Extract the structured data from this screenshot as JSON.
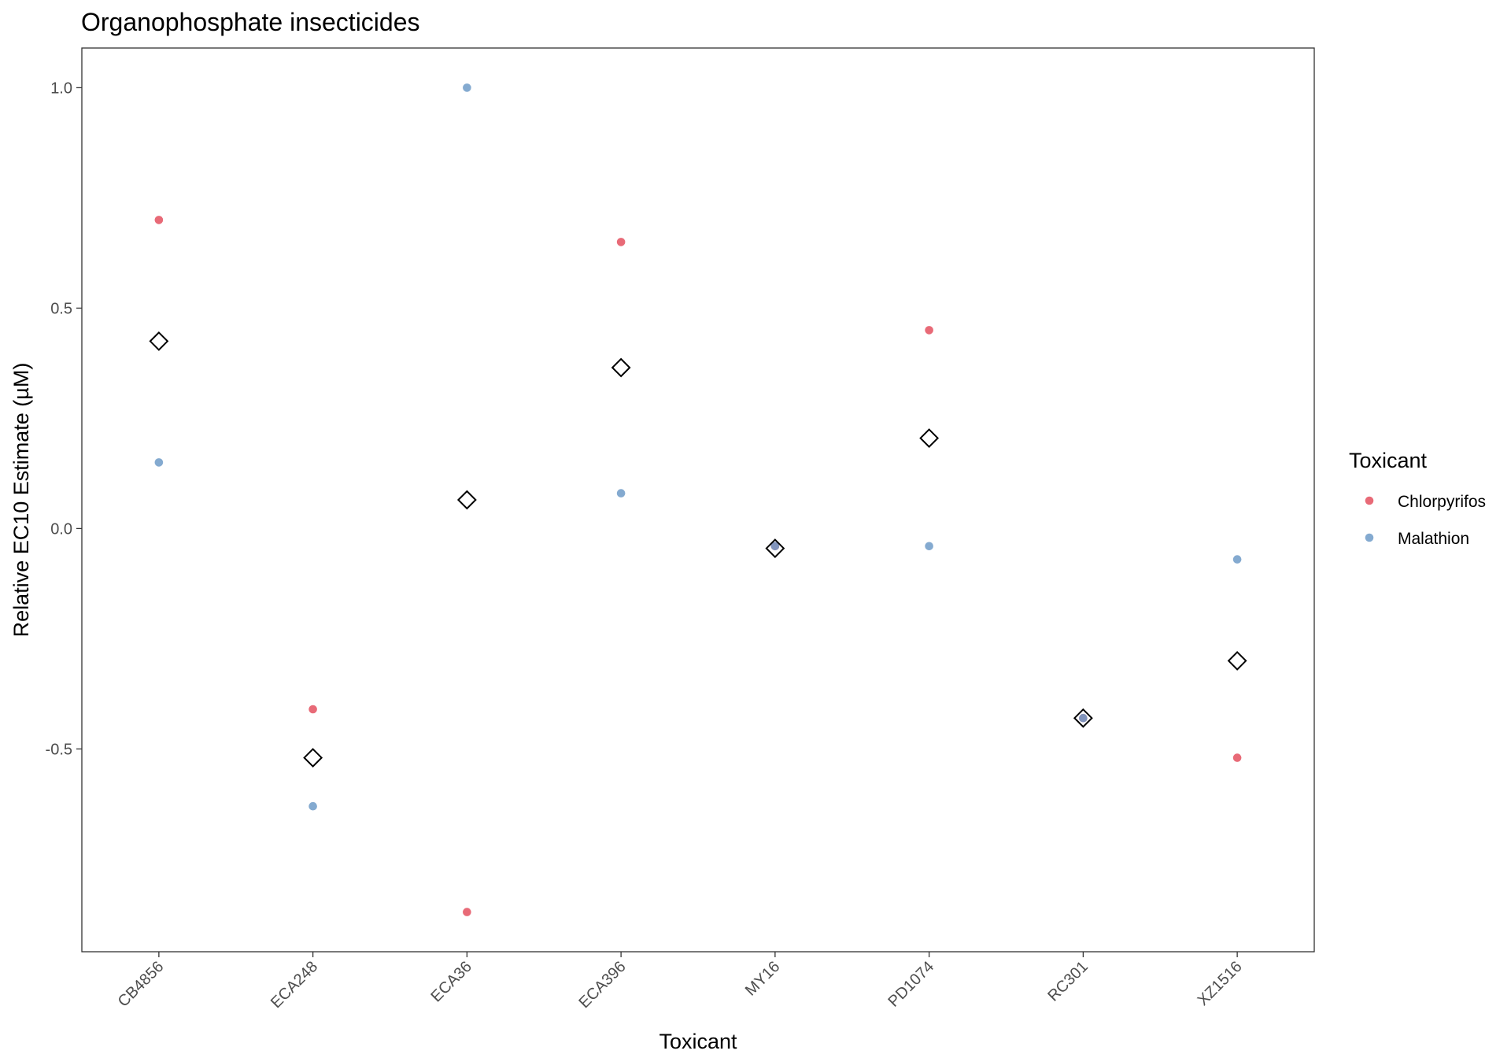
{
  "chart_data": {
    "type": "scatter",
    "title": "Organophosphate insecticides",
    "xlabel": "Toxicant",
    "ylabel": "Relative EC10 Estimate (µM)",
    "categories": [
      "CB4856",
      "ECA248",
      "ECA36",
      "ECA396",
      "MY16",
      "PD1074",
      "RC301",
      "XZ1516"
    ],
    "ylim": [
      -0.96,
      1.09
    ],
    "yticks": [
      -0.5,
      0.0,
      0.5,
      1.0
    ],
    "ytick_labels": [
      "-0.5",
      "0.0",
      "0.5",
      "1.0"
    ],
    "grid": false,
    "legend": {
      "title": "Toxicant",
      "position": "right"
    },
    "series": [
      {
        "name": "Chlorpyrifos",
        "color": "#e4505f",
        "values": [
          0.7,
          -0.41,
          -0.87,
          0.65,
          -0.04,
          0.45,
          -0.43,
          -0.52
        ]
      },
      {
        "name": "Malathion",
        "color": "#6f9bc8",
        "values": [
          0.15,
          -0.63,
          1.0,
          0.08,
          -0.04,
          -0.04,
          -0.43,
          -0.07
        ]
      }
    ],
    "mean_markers": {
      "shape": "diamond",
      "values": [
        0.425,
        -0.52,
        0.065,
        0.365,
        -0.045,
        0.205,
        -0.43,
        -0.3
      ]
    }
  }
}
